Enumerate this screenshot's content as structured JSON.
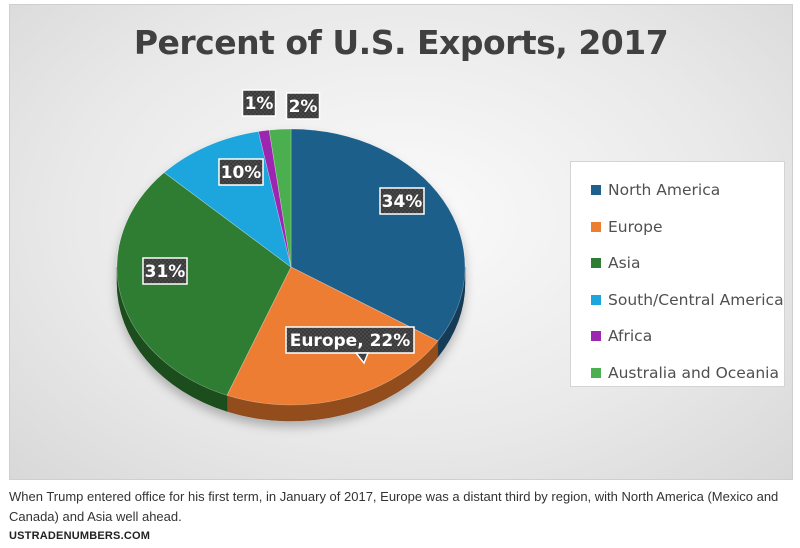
{
  "chart_data": {
    "type": "pie",
    "title": "Percent of U.S. Exports, 2017",
    "categories": [
      "North America",
      "Europe",
      "Asia",
      "South/Central America",
      "Africa",
      "Australia and Oceania"
    ],
    "values": [
      34,
      22,
      31,
      10,
      1,
      2
    ],
    "units": "%",
    "colors": [
      "#1f5f8b",
      "#ed7d31",
      "#2e7d32",
      "#1ca6dd",
      "#9c27b0",
      "#4caf50"
    ],
    "data_labels": [
      "34%",
      "Europe, 22%",
      "31%",
      "10%",
      "1%",
      "2%"
    ],
    "legend_position": "right",
    "style": "3d"
  },
  "caption": "When Trump entered office for his first term, in January of 2017, Europe was a distant third by region, with North America (Mexico and Canada) and Asia well ahead.",
  "source": "USTRADENUMBERS.COM"
}
